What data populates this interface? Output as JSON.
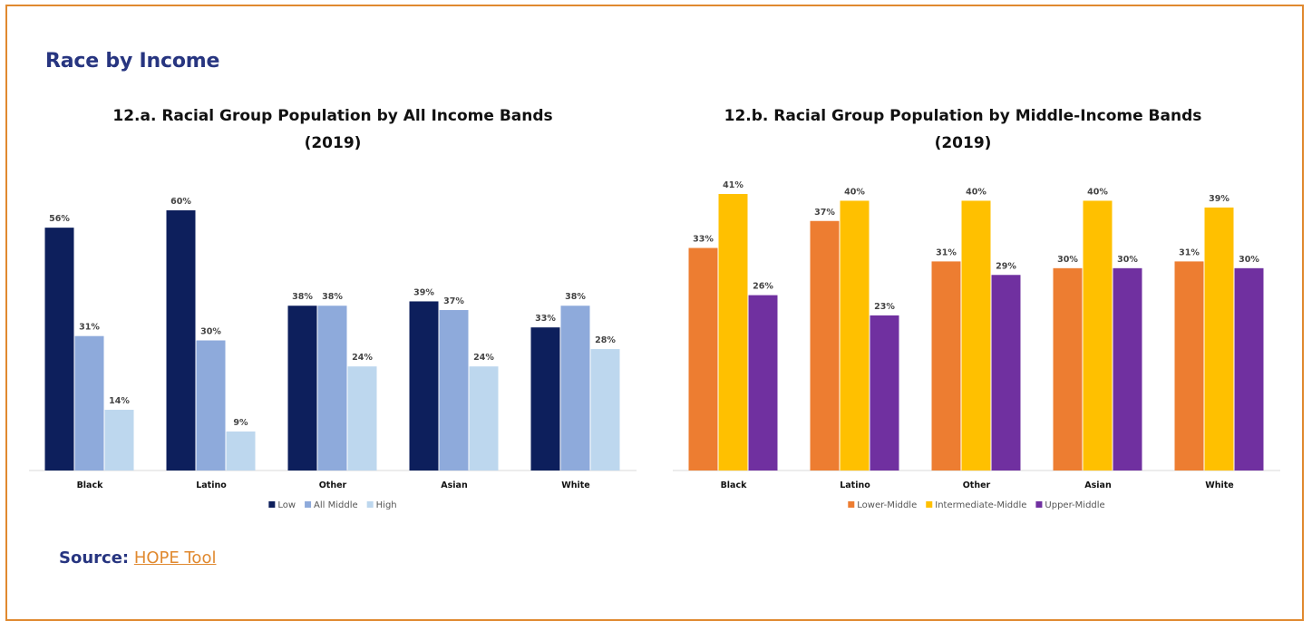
{
  "section_title": "Race by Income",
  "source": {
    "label": "Source:",
    "link_text": "HOPE Tool"
  },
  "colors": {
    "frame": "#e0892f",
    "title": "#273580",
    "chart_a": [
      "#0d1f5c",
      "#8eaadb",
      "#bdd7ee"
    ],
    "chart_b": [
      "#ed7d31",
      "#ffc000",
      "#7030a0"
    ]
  },
  "chart_data": [
    {
      "type": "bar",
      "title_lines": [
        "12.a. Racial Group Population by All Income Bands",
        "(2019)"
      ],
      "categories": [
        "Black",
        "Latino",
        "Other",
        "Asian",
        "White"
      ],
      "series": [
        {
          "name": "Low",
          "values": [
            56,
            60,
            38,
            39,
            33
          ]
        },
        {
          "name": "All Middle",
          "values": [
            31,
            30,
            38,
            37,
            38
          ]
        },
        {
          "name": "High",
          "values": [
            14,
            9,
            24,
            24,
            28
          ]
        }
      ],
      "value_suffix": "%",
      "ylim": [
        0,
        60
      ],
      "legend_position": "bottom",
      "grid": false
    },
    {
      "type": "bar",
      "title_lines": [
        "12.b. Racial Group Population by Middle-Income Bands",
        "(2019)"
      ],
      "categories": [
        "Black",
        "Latino",
        "Other",
        "Asian",
        "White"
      ],
      "series": [
        {
          "name": "Lower-Middle",
          "values": [
            33,
            37,
            31,
            30,
            31
          ]
        },
        {
          "name": "Intermediate-Middle",
          "values": [
            41,
            40,
            40,
            40,
            39
          ]
        },
        {
          "name": "Upper-Middle",
          "values": [
            26,
            23,
            29,
            30,
            30
          ]
        }
      ],
      "value_suffix": "%",
      "ylim": [
        0,
        41
      ],
      "legend_position": "bottom",
      "grid": false
    }
  ]
}
